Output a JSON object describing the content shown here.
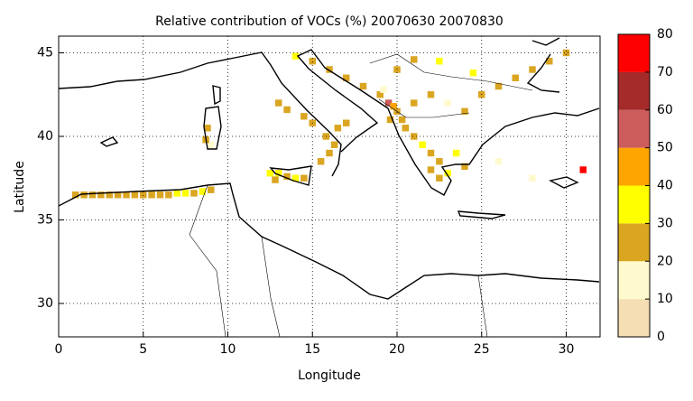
{
  "chart_data": {
    "type": "gridmap",
    "title": "Relative contribution of VOCs (%) 20070630 20070830",
    "xlabel": "Longitude",
    "ylabel": "Latitude",
    "xlim": [
      0,
      32
    ],
    "ylim": [
      28,
      46
    ],
    "xticks": [
      0,
      5,
      10,
      15,
      20,
      25,
      30
    ],
    "yticks": [
      30,
      35,
      40,
      45
    ],
    "grid": true,
    "colorbar": {
      "levels": [
        0,
        10,
        20,
        30,
        40,
        50,
        60,
        70,
        80
      ],
      "colors": [
        "#f5deb3",
        "#fffacd",
        "#daa520",
        "#ffff00",
        "#ffa500",
        "#cd5c5c",
        "#a52a2a",
        "#ff0000"
      ]
    },
    "x": [
      1,
      1.5,
      2,
      2.5,
      3,
      3.5,
      4,
      4.5,
      5,
      5.5,
      6,
      6.5,
      7,
      7.5,
      8,
      8.5,
      9,
      12.5,
      13,
      13.5,
      14,
      14.5,
      12.8,
      15.5,
      16,
      16.3,
      15.8,
      16.5,
      17,
      15,
      14.5,
      13.5,
      13,
      8.8,
      9,
      8.7,
      19.5,
      19.8,
      20,
      20.3,
      19.6,
      20.5,
      21,
      21.5,
      22,
      22.5,
      22,
      22.5,
      23,
      24,
      23.5,
      21,
      22,
      23,
      18,
      17,
      16,
      15,
      14,
      24,
      25,
      26,
      27,
      28,
      29,
      30,
      24.5,
      22.5,
      20,
      21,
      19,
      19.2,
      31,
      28,
      26
    ],
    "y": [
      36.5,
      36.5,
      36.5,
      36.5,
      36.5,
      36.5,
      36.5,
      36.5,
      36.5,
      36.5,
      36.5,
      36.5,
      36.6,
      36.6,
      36.6,
      36.7,
      36.8,
      37.8,
      37.8,
      37.6,
      37.5,
      37.5,
      37.4,
      38.5,
      39,
      39.5,
      40,
      40.5,
      40.8,
      40.8,
      41.2,
      41.6,
      42,
      40.5,
      39.5,
      39.8,
      42,
      41.8,
      41.5,
      41,
      41,
      40.5,
      40,
      39.5,
      39,
      38.5,
      38,
      37.5,
      37.8,
      38.2,
      39,
      42,
      42.5,
      42,
      43,
      43.5,
      44,
      44.5,
      44.8,
      41.5,
      42.5,
      43,
      43.5,
      44,
      44.5,
      45,
      43.8,
      44.5,
      44,
      44.6,
      42.5,
      42.8,
      38,
      37.5,
      38.5
    ],
    "values": [
      25,
      25,
      25,
      25,
      25,
      25,
      25,
      25,
      25,
      25,
      25,
      25,
      35,
      35,
      25,
      35,
      25,
      35,
      35,
      25,
      35,
      25,
      25,
      25,
      25,
      25,
      25,
      25,
      25,
      25,
      25,
      25,
      25,
      25,
      15,
      25,
      55,
      45,
      25,
      25,
      25,
      25,
      25,
      35,
      25,
      25,
      25,
      25,
      35,
      25,
      35,
      25,
      25,
      15,
      25,
      25,
      25,
      25,
      35,
      25,
      25,
      25,
      25,
      25,
      25,
      25,
      35,
      35,
      25,
      25,
      25,
      15,
      75,
      15,
      15
    ]
  }
}
